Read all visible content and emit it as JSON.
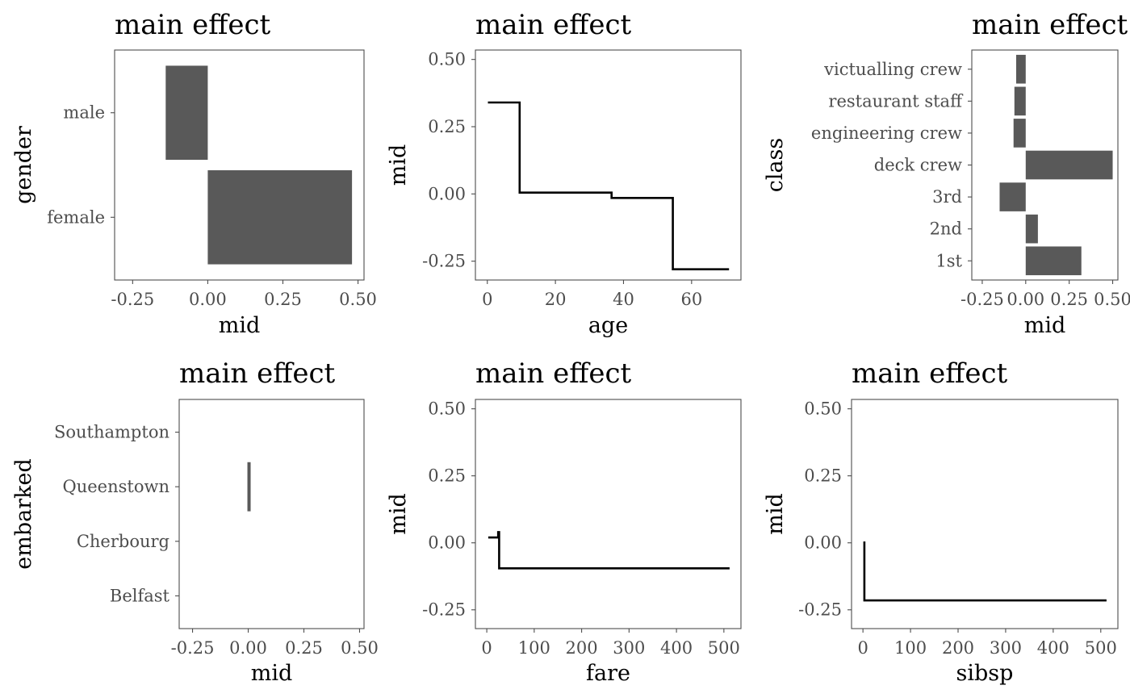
{
  "colors": {
    "bar": "#595959",
    "line": "#000000",
    "frame": "#4d4d4d",
    "tick_text": "#4d4d4d"
  },
  "chart_data": [
    {
      "type": "bar",
      "orientation": "horizontal",
      "title": "main effect",
      "xlabel": "mid",
      "ylabel": "gender",
      "categories": [
        "female",
        "male"
      ],
      "values": [
        0.48,
        -0.14
      ],
      "xlim": [
        -0.31,
        0.52
      ],
      "xticks": [
        -0.25,
        0.0,
        0.25,
        0.5
      ],
      "xtick_labels": [
        "-0.25",
        "0.00",
        "0.25",
        "0.50"
      ],
      "grid": false
    },
    {
      "type": "line",
      "step": true,
      "title": "main effect",
      "xlabel": "age",
      "ylabel": "mid",
      "x": [
        0.17,
        9.5,
        9.5,
        36.5,
        36.5,
        54.5,
        54.5,
        71
      ],
      "y": [
        0.34,
        0.34,
        0.005,
        0.005,
        -0.015,
        -0.015,
        -0.28,
        -0.28
      ],
      "xlim": [
        -3.5,
        74.5
      ],
      "ylim": [
        -0.32,
        0.535
      ],
      "xticks": [
        0,
        20,
        40,
        60
      ],
      "xtick_labels": [
        "0",
        "20",
        "40",
        "60"
      ],
      "yticks": [
        -0.25,
        0.0,
        0.25,
        0.5
      ],
      "ytick_labels": [
        "-0.25",
        "0.00",
        "0.25",
        "0.50"
      ],
      "grid": false
    },
    {
      "type": "bar",
      "orientation": "horizontal",
      "title": "main effect",
      "xlabel": "mid",
      "ylabel": "class",
      "categories": [
        "1st",
        "2nd",
        "3rd",
        "deck crew",
        "engineering crew",
        "restaurant staff",
        "victualling crew"
      ],
      "values": [
        0.32,
        0.07,
        -0.15,
        0.5,
        -0.07,
        -0.065,
        -0.055
      ],
      "xlim": [
        -0.31,
        0.53
      ],
      "xticks": [
        -0.25,
        0.0,
        0.25,
        0.5
      ],
      "xtick_labels": [
        "-0.25",
        "0.00",
        "0.25",
        "0.50"
      ],
      "grid": false
    },
    {
      "type": "bar",
      "orientation": "horizontal",
      "title": "main effect",
      "xlabel": "mid",
      "ylabel": "embarked",
      "categories": [
        "Belfast",
        "Cherbourg",
        "Queenstown",
        "Southampton"
      ],
      "values": [
        0.0,
        0.0,
        0.01,
        0.0
      ],
      "xlim": [
        -0.31,
        0.52
      ],
      "xticks": [
        -0.25,
        0.0,
        0.25,
        0.5
      ],
      "xtick_labels": [
        "-0.25",
        "0.00",
        "0.25",
        "0.50"
      ],
      "grid": false
    },
    {
      "type": "line",
      "step": true,
      "title": "main effect",
      "xlabel": "fare",
      "ylabel": "mid",
      "x": [
        3,
        24,
        24,
        26,
        26,
        512
      ],
      "y": [
        0.02,
        0.02,
        0.04,
        0.04,
        -0.095,
        -0.095
      ],
      "xlim": [
        -24,
        536
      ],
      "ylim": [
        -0.32,
        0.535
      ],
      "xticks": [
        0,
        100,
        200,
        300,
        400,
        500
      ],
      "xtick_labels": [
        "0",
        "100",
        "200",
        "300",
        "400",
        "500"
      ],
      "yticks": [
        -0.25,
        0.0,
        0.25,
        0.5
      ],
      "ytick_labels": [
        "-0.25",
        "0.00",
        "0.25",
        "0.50"
      ],
      "grid": false
    },
    {
      "type": "line",
      "step": true,
      "title": "main effect",
      "xlabel": "sibsp",
      "ylabel": "mid",
      "x": [
        3,
        3,
        512
      ],
      "y": [
        0.005,
        -0.215,
        -0.215
      ],
      "xlim": [
        -24,
        536
      ],
      "ylim": [
        -0.32,
        0.535
      ],
      "xticks": [
        0,
        100,
        200,
        300,
        400,
        500
      ],
      "xtick_labels": [
        "0",
        "100",
        "200",
        "300",
        "400",
        "500"
      ],
      "yticks": [
        -0.25,
        0.0,
        0.25,
        0.5
      ],
      "ytick_labels": [
        "-0.25",
        "0.00",
        "0.25",
        "0.50"
      ],
      "grid": false
    }
  ]
}
